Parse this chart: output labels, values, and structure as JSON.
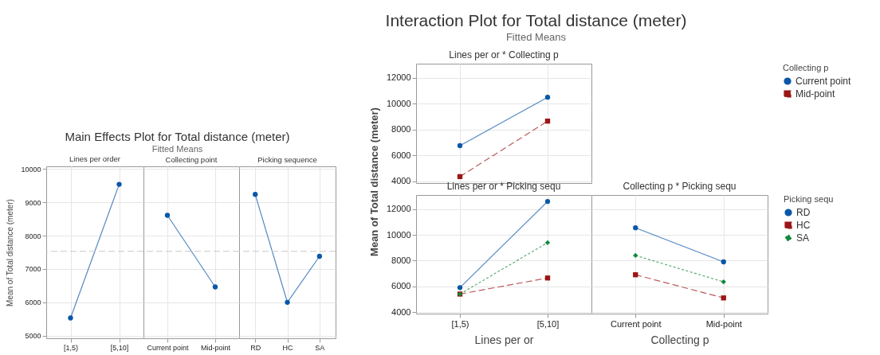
{
  "chart_data": [
    {
      "type": "other",
      "title": "Main Effects Plot for Total distance (meter)",
      "subtitle": "Fitted Means"
    },
    {
      "type": "line",
      "title": "Lines per order",
      "categories": [
        "[1,5)",
        "[5,10]"
      ],
      "ylabel": "Mean of Total distance (meter)",
      "ylim": [
        4920,
        10080
      ],
      "yticks": [
        5000,
        6000,
        7000,
        8000,
        9000,
        10000
      ],
      "grid": true,
      "marker": "circle",
      "line_style": "solid",
      "ref_lines": [
        {
          "axis": "y",
          "value": 7530,
          "color": "#c8c8c8",
          "line_style": "dashed"
        }
      ],
      "series": [
        {
          "color": "#0b57a8",
          "values": [
            5530,
            9540
          ]
        }
      ]
    },
    {
      "type": "line",
      "title": "Collecting point",
      "categories": [
        "Current point",
        "Mid-point"
      ],
      "ylim": [
        4920,
        10080
      ],
      "yticks": [
        5000,
        6000,
        7000,
        8000,
        9000,
        10000
      ],
      "tick_labels": "x",
      "grid": true,
      "marker": "circle",
      "line_style": "solid",
      "ref_lines": [
        {
          "axis": "y",
          "value": 7530,
          "color": "#c8c8c8",
          "line_style": "dashed"
        }
      ],
      "series": [
        {
          "color": "#0b57a8",
          "values": [
            8610,
            6460
          ]
        }
      ]
    },
    {
      "type": "line",
      "title": "Picking sequence",
      "categories": [
        "RD",
        "HC",
        "SA"
      ],
      "ylim": [
        4920,
        10080
      ],
      "yticks": [
        5000,
        6000,
        7000,
        8000,
        9000,
        10000
      ],
      "tick_labels": "x",
      "grid": true,
      "marker": "circle",
      "line_style": "solid",
      "ref_lines": [
        {
          "axis": "y",
          "value": 7530,
          "color": "#c8c8c8",
          "line_style": "dashed"
        }
      ],
      "series": [
        {
          "color": "#0b57a8",
          "values": [
            9240,
            6000,
            7380
          ]
        }
      ]
    },
    {
      "type": "other",
      "title": "Interaction Plot for Total distance (meter)",
      "subtitle": "Fitted Means"
    },
    {
      "type": "line",
      "title": "Lines per or * Collecting p",
      "categories": [
        null,
        null
      ],
      "ylim": [
        3850,
        13100
      ],
      "yticks": [
        4000,
        6000,
        8000,
        10000,
        12000
      ],
      "ylabel": "Mean of Total distance (meter)",
      "tick_labels": "y",
      "grid": true,
      "legend": "right",
      "legend_title": "Collecting p",
      "series": [
        {
          "name": "Current point",
          "color": "#0b57a8",
          "marker": "circle",
          "line_style": "solid",
          "values": [
            6750,
            10500
          ]
        },
        {
          "name": "Mid-point",
          "color": "#9c1515",
          "marker": "square",
          "line_style": "dashed",
          "values": [
            4350,
            8650
          ]
        }
      ]
    },
    {
      "type": "line",
      "title": "Lines per or * Picking sequ",
      "categories": [
        "[1,5)",
        "[5,10]"
      ],
      "xlabel": "Lines per or",
      "ylim": [
        3880,
        13100
      ],
      "yticks": [
        4000,
        6000,
        8000,
        10000,
        12000
      ],
      "grid": true,
      "legend": false,
      "series": [
        {
          "color": "#0b57a8",
          "marker": "circle",
          "line_style": "solid",
          "values": [
            5900,
            12600
          ]
        },
        {
          "color": "#9c1515",
          "marker": "square",
          "line_style": "dashed",
          "values": [
            5400,
            6650
          ]
        },
        {
          "color": "#11893a",
          "marker": "diamond",
          "line_style": "dotted",
          "values": [
            5400,
            9400
          ]
        }
      ]
    },
    {
      "type": "line",
      "title": "Collecting p * Picking sequ",
      "categories": [
        "Current point",
        "Mid-point"
      ],
      "xlabel": "Collecting p",
      "ylim": [
        3880,
        13100
      ],
      "yticks": [
        4000,
        6000,
        8000,
        10000,
        12000
      ],
      "tick_labels": "x",
      "grid": true,
      "legend": "right",
      "legend_title": "Picking sequ",
      "series": [
        {
          "name": "RD",
          "color": "#0b57a8",
          "marker": "circle",
          "line_style": "solid",
          "values": [
            10550,
            7900
          ]
        },
        {
          "name": "HC",
          "color": "#9c1515",
          "marker": "square",
          "line_style": "dashed",
          "values": [
            6900,
            5100
          ]
        },
        {
          "name": "SA",
          "color": "#11893a",
          "marker": "diamond",
          "line_style": "dotted",
          "values": [
            8400,
            6350
          ]
        }
      ]
    }
  ]
}
